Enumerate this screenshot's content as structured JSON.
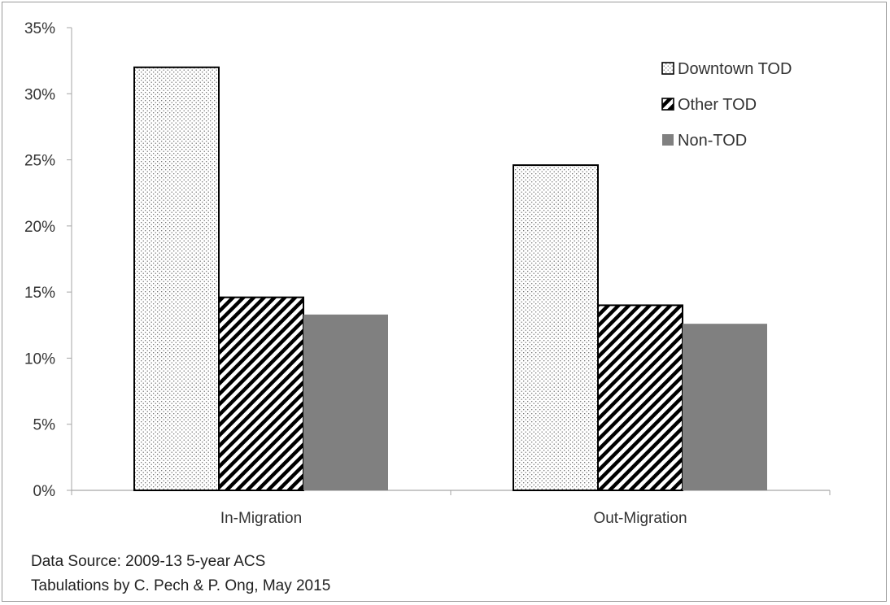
{
  "chart_data": {
    "type": "bar",
    "categories": [
      "In-Migration",
      "Out-Migration"
    ],
    "series": [
      {
        "name": "Downtown TOD",
        "values": [
          0.32,
          0.246
        ],
        "pattern": "dots"
      },
      {
        "name": "Other TOD",
        "values": [
          0.146,
          0.14
        ],
        "pattern": "hatch"
      },
      {
        "name": "Non-TOD",
        "values": [
          0.133,
          0.126
        ],
        "pattern": "solid"
      }
    ],
    "ylim": [
      0,
      0.35
    ],
    "y_ticks": [
      0,
      0.05,
      0.1,
      0.15,
      0.2,
      0.25,
      0.3,
      0.35
    ],
    "y_tick_labels": [
      "0%",
      "5%",
      "10%",
      "15%",
      "20%",
      "25%",
      "30%",
      "35%"
    ],
    "title": "",
    "xlabel": "",
    "ylabel": "",
    "grid": false,
    "legend_position": "top-right",
    "colors": {
      "solid_fill": "#808080",
      "outline": "#000000",
      "axis": "#a6a6a6"
    }
  },
  "footnotes": {
    "line1": "Data Source: 2009-13 5-year ACS",
    "line2": "Tabulations by C. Pech & P. Ong, May 2015"
  }
}
